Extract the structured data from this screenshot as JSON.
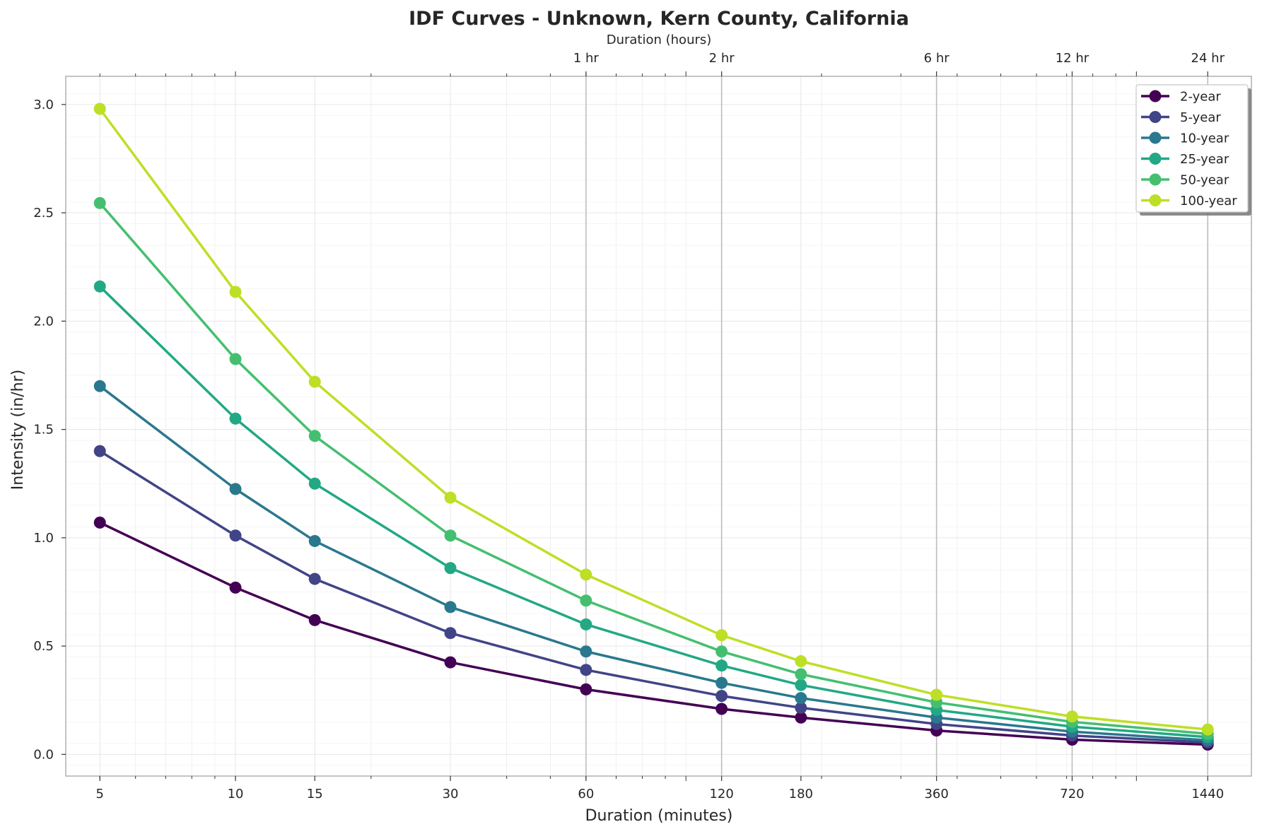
{
  "chart_data": {
    "type": "line",
    "title": "IDF Curves - Unknown, Kern County, California",
    "xlabel": "Duration (minutes)",
    "ylabel": "Intensity (in/hr)",
    "x_scale": "log",
    "xlim": [
      4.2,
      1800
    ],
    "ylim": [
      -0.1,
      3.13
    ],
    "x": [
      5,
      10,
      15,
      30,
      60,
      120,
      180,
      360,
      720,
      1440
    ],
    "x_tick_labels": [
      "5",
      "10",
      "15",
      "30",
      "60",
      "120",
      "180",
      "360",
      "720",
      "1440"
    ],
    "y_ticks": [
      0.0,
      0.5,
      1.0,
      1.5,
      2.0,
      2.5,
      3.0
    ],
    "y_tick_labels": [
      "0.0",
      "0.5",
      "1.0",
      "1.5",
      "2.0",
      "2.5",
      "3.0"
    ],
    "top_axis": {
      "label": "Duration (hours)",
      "ticks": [
        60,
        120,
        360,
        720,
        1440
      ],
      "tick_labels": [
        "1 hr",
        "2 hr",
        "6 hr",
        "12 hr",
        "24 hr"
      ]
    },
    "grid": true,
    "legend_position": "top-right",
    "series": [
      {
        "name": "2-year",
        "color": "#440154",
        "values": [
          1.07,
          0.77,
          0.62,
          0.425,
          0.3,
          0.21,
          0.17,
          0.11,
          0.068,
          0.045
        ]
      },
      {
        "name": "5-year",
        "color": "#414487",
        "values": [
          1.4,
          1.01,
          0.81,
          0.56,
          0.39,
          0.27,
          0.215,
          0.14,
          0.087,
          0.055
        ]
      },
      {
        "name": "10-year",
        "color": "#2a788e",
        "values": [
          1.7,
          1.225,
          0.985,
          0.68,
          0.475,
          0.33,
          0.26,
          0.17,
          0.105,
          0.065
        ]
      },
      {
        "name": "25-year",
        "color": "#22a884",
        "values": [
          2.16,
          1.55,
          1.25,
          0.86,
          0.6,
          0.41,
          0.32,
          0.205,
          0.128,
          0.08
        ]
      },
      {
        "name": "50-year",
        "color": "#44bf70",
        "values": [
          2.545,
          1.825,
          1.47,
          1.01,
          0.71,
          0.475,
          0.37,
          0.24,
          0.15,
          0.095
        ]
      },
      {
        "name": "100-year",
        "color": "#bddf26",
        "values": [
          2.98,
          2.135,
          1.72,
          1.185,
          0.83,
          0.55,
          0.43,
          0.275,
          0.175,
          0.115
        ]
      }
    ]
  }
}
